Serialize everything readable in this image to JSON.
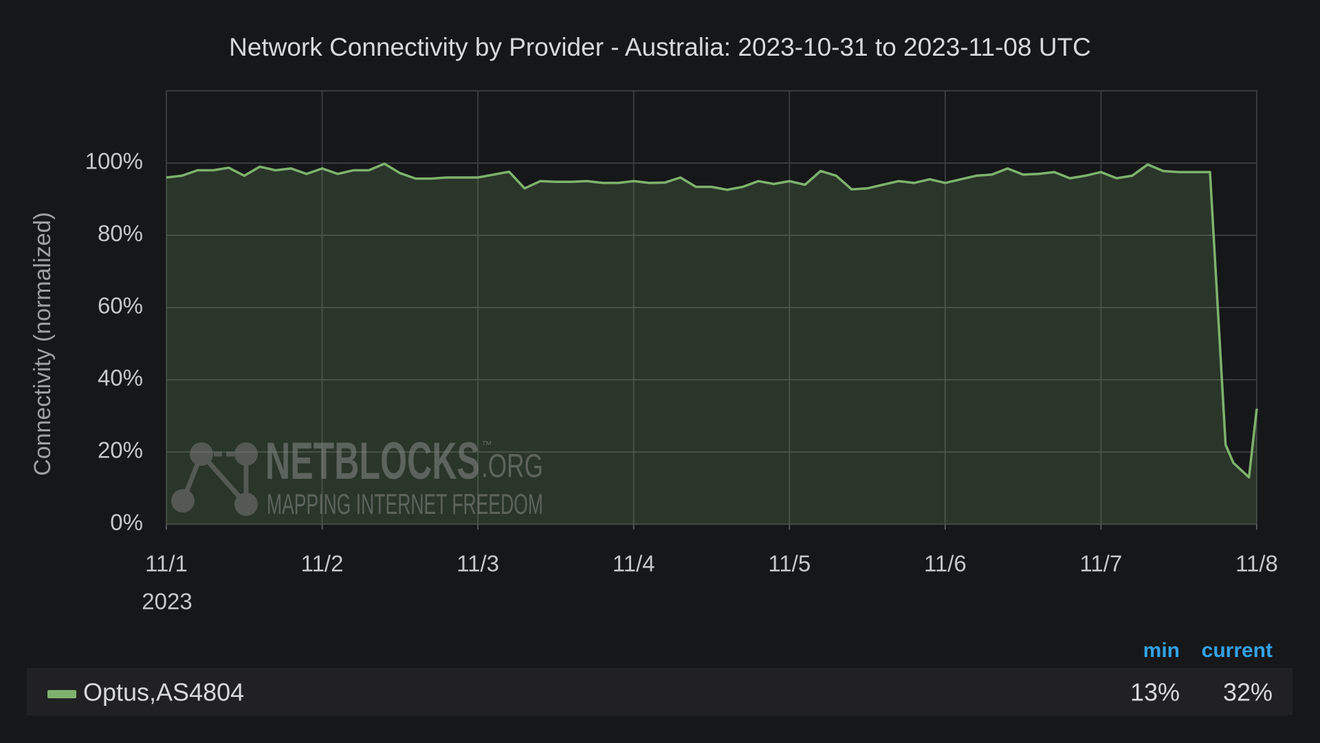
{
  "chart_data": {
    "type": "line",
    "title": "Network Connectivity by Provider - Australia: 2023-10-31 to 2023-11-08 UTC",
    "y_label": "Connectivity (normalized)",
    "x_year_label": "2023",
    "xlim": [
      0,
      7
    ],
    "xticks": [
      {
        "value": 0,
        "label": "11/1"
      },
      {
        "value": 1,
        "label": "11/2"
      },
      {
        "value": 2,
        "label": "11/3"
      },
      {
        "value": 3,
        "label": "11/4"
      },
      {
        "value": 4,
        "label": "11/5"
      },
      {
        "value": 5,
        "label": "11/6"
      },
      {
        "value": 6,
        "label": "11/7"
      },
      {
        "value": 7,
        "label": "11/8"
      }
    ],
    "ylim": [
      0,
      120
    ],
    "yticks": [
      {
        "value": 0,
        "label": "0%"
      },
      {
        "value": 20,
        "label": "20%"
      },
      {
        "value": 40,
        "label": "40%"
      },
      {
        "value": 60,
        "label": "60%"
      },
      {
        "value": 80,
        "label": "80%"
      },
      {
        "value": 100,
        "label": "100%"
      }
    ],
    "grid": true,
    "watermark": {
      "name": "NETBLOCKS",
      "trademark": "™",
      "suffix": ".ORG",
      "tagline": "MAPPING INTERNET FREEDOM"
    },
    "legend_headers": [
      "min",
      "current"
    ],
    "series": [
      {
        "name": "Optus,AS4804",
        "color": "#7eb26d",
        "x": [
          0,
          0.1,
          0.2,
          0.3,
          0.4,
          0.5,
          0.6,
          0.7,
          0.8,
          0.9,
          1,
          1.1,
          1.2,
          1.3,
          1.4,
          1.5,
          1.6,
          1.7,
          1.8,
          1.9,
          2,
          2.1,
          2.2,
          2.3,
          2.4,
          2.5,
          2.6,
          2.7,
          2.8,
          2.9,
          3,
          3.1,
          3.2,
          3.3,
          3.4,
          3.5,
          3.6,
          3.7,
          3.8,
          3.9,
          4,
          4.1,
          4.2,
          4.3,
          4.4,
          4.5,
          4.6,
          4.7,
          4.8,
          4.9,
          5,
          5.1,
          5.2,
          5.3,
          5.4,
          5.5,
          5.6,
          5.7,
          5.8,
          5.9,
          6,
          6.1,
          6.2,
          6.3,
          6.4,
          6.5,
          6.6,
          6.7,
          6.8,
          6.85,
          6.95,
          7
        ],
        "values": [
          96,
          96.5,
          98,
          98,
          98.7,
          96.5,
          99,
          98,
          98.5,
          97,
          98.5,
          97,
          98,
          98,
          99.8,
          97.2,
          95.7,
          95.7,
          96,
          96,
          96,
          96.8,
          97.6,
          93,
          95,
          94.8,
          94.8,
          95,
          94.5,
          94.5,
          95,
          94.5,
          94.6,
          96,
          93.4,
          93.4,
          92.6,
          93.4,
          95,
          94.2,
          95,
          94,
          97.8,
          96.5,
          92.7,
          93,
          94,
          95,
          94.5,
          95.5,
          94.5,
          95.5,
          96.5,
          96.8,
          98.5,
          96.8,
          97,
          97.5,
          95.8,
          96.5,
          97.5,
          95.8,
          96.5,
          99.6,
          97.8,
          97.5,
          97.5,
          97.5,
          22,
          17,
          13,
          32
        ],
        "stats": [
          "13%",
          "32%"
        ]
      }
    ]
  }
}
